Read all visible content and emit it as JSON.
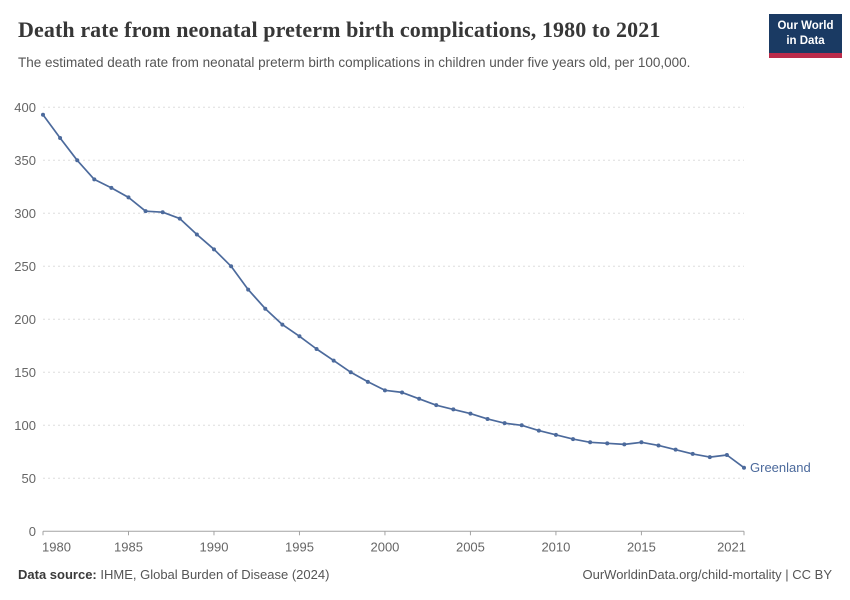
{
  "header": {
    "title": "Death rate from neonatal preterm birth complications, 1980 to 2021",
    "subtitle": "The estimated death rate from neonatal preterm birth complications in children under five years old, per 100,000.",
    "logo": {
      "line1": "Our World",
      "line2": "in Data",
      "bg_color": "#1a3a63",
      "stripe_color": "#bb2b4a"
    }
  },
  "chart_data": {
    "type": "line",
    "title": "Death rate from neonatal preterm birth complications, 1980 to 2021",
    "xlabel": "",
    "ylabel": "",
    "xlim": [
      1980,
      2021
    ],
    "ylim": [
      0,
      400
    ],
    "x_ticks": [
      1980,
      1985,
      1990,
      1995,
      2000,
      2005,
      2010,
      2015,
      2021
    ],
    "y_ticks": [
      0,
      50,
      100,
      150,
      200,
      250,
      300,
      350,
      400
    ],
    "grid": "horizontal-dashed",
    "legend_position": "end-of-line-label",
    "series": [
      {
        "name": "Greenland",
        "color": "#4C6A9C",
        "x": [
          1980,
          1981,
          1982,
          1983,
          1984,
          1985,
          1986,
          1987,
          1988,
          1989,
          1990,
          1991,
          1992,
          1993,
          1994,
          1995,
          1996,
          1997,
          1998,
          1999,
          2000,
          2001,
          2002,
          2003,
          2004,
          2005,
          2006,
          2007,
          2008,
          2009,
          2010,
          2011,
          2012,
          2013,
          2014,
          2015,
          2016,
          2017,
          2018,
          2019,
          2020,
          2021
        ],
        "values": [
          393,
          371,
          350,
          332,
          324,
          315,
          302,
          301,
          295,
          280,
          266,
          250,
          228,
          210,
          195,
          184,
          172,
          161,
          150,
          141,
          133,
          131,
          125,
          119,
          115,
          111,
          106,
          102,
          100,
          95,
          91,
          87,
          84,
          83,
          82,
          84,
          81,
          77,
          73,
          70,
          72,
          60
        ]
      }
    ]
  },
  "footer": {
    "source_label": "Data source:",
    "source_text": " IHME, Global Burden of Disease (2024)",
    "rights": "OurWorldinData.org/child-mortality | CC BY"
  },
  "colors": {
    "line": "#4C6A9C",
    "grid": "#dddddd",
    "axis": "#a3a3a3",
    "tick_label": "#666666",
    "title": "#373737",
    "subtitle": "#555555"
  }
}
